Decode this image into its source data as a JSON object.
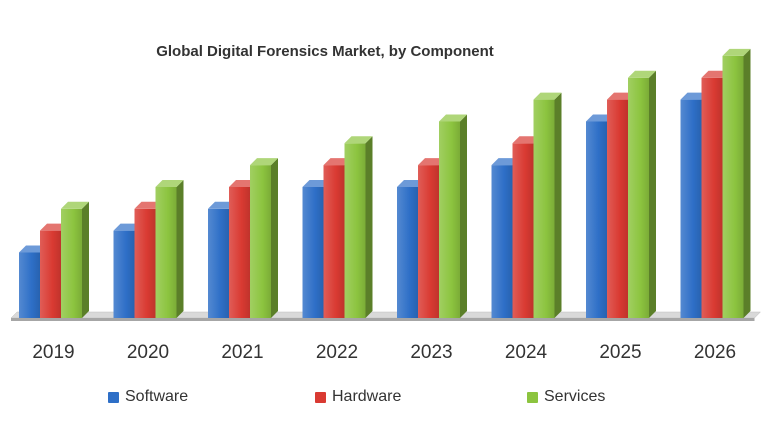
{
  "chart_data": {
    "type": "bar",
    "title": "Global Digital Forensics Market, by Component",
    "categories": [
      "2019",
      "2020",
      "2021",
      "2022",
      "2023",
      "2024",
      "2025",
      "2026"
    ],
    "series": [
      {
        "name": "Software",
        "color": "#2e6fc7",
        "values": [
          3.0,
          4.0,
          5.0,
          6.0,
          6.0,
          7.0,
          9.0,
          10.0
        ]
      },
      {
        "name": "Hardware",
        "color": "#d93a32",
        "values": [
          4.0,
          5.0,
          6.0,
          7.0,
          7.0,
          8.0,
          10.0,
          11.0
        ]
      },
      {
        "name": "Services",
        "color": "#8cc43f",
        "values": [
          5.0,
          6.0,
          7.0,
          8.0,
          9.0,
          10.0,
          11.0,
          12.0
        ]
      }
    ],
    "ylim": [
      0,
      12.5
    ],
    "grid": false,
    "legend_position": "bottom",
    "style": "3d-column"
  }
}
